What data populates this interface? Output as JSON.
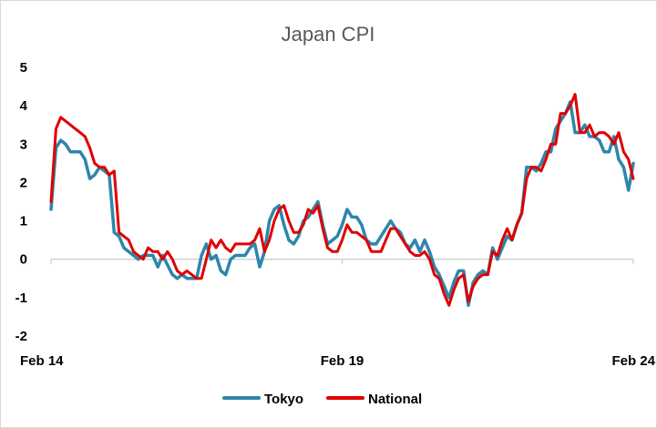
{
  "chart_data": {
    "type": "line",
    "title": "Japan CPI",
    "xlabel": "",
    "ylabel": "",
    "x_range": [
      2014.083,
      2024.083
    ],
    "ylim": [
      -2,
      5
    ],
    "y_ticks": [
      "-2",
      "-1",
      "0",
      "1",
      "2",
      "3",
      "4",
      "5"
    ],
    "x_ticks": [
      {
        "label": "Feb 14",
        "x": 2014.083
      },
      {
        "label": "Feb 19",
        "x": 2019.083
      },
      {
        "label": "Feb 24",
        "x": 2024.083
      }
    ],
    "grid": false,
    "legend": "bottom",
    "series": [
      {
        "name": "Tokyo",
        "color": "#2E86AB",
        "points": [
          [
            2014.083,
            1.3
          ],
          [
            2014.167,
            2.9
          ],
          [
            2014.25,
            3.1
          ],
          [
            2014.333,
            3.0
          ],
          [
            2014.417,
            2.8
          ],
          [
            2014.583,
            2.8
          ],
          [
            2014.667,
            2.6
          ],
          [
            2014.75,
            2.1
          ],
          [
            2014.833,
            2.2
          ],
          [
            2014.917,
            2.4
          ],
          [
            2015.0,
            2.3
          ],
          [
            2015.083,
            2.2
          ],
          [
            2015.167,
            0.7
          ],
          [
            2015.25,
            0.6
          ],
          [
            2015.333,
            0.3
          ],
          [
            2015.5,
            0.1
          ],
          [
            2015.583,
            0.0
          ],
          [
            2015.667,
            0.1
          ],
          [
            2015.833,
            0.1
          ],
          [
            2015.917,
            -0.2
          ],
          [
            2016.0,
            0.1
          ],
          [
            2016.167,
            -0.4
          ],
          [
            2016.25,
            -0.5
          ],
          [
            2016.333,
            -0.4
          ],
          [
            2016.417,
            -0.5
          ],
          [
            2016.5,
            -0.5
          ],
          [
            2016.583,
            -0.5
          ],
          [
            2016.667,
            0.1
          ],
          [
            2016.75,
            0.4
          ],
          [
            2016.833,
            0.0
          ],
          [
            2016.917,
            0.1
          ],
          [
            2017.0,
            -0.3
          ],
          [
            2017.083,
            -0.4
          ],
          [
            2017.167,
            0.0
          ],
          [
            2017.25,
            0.1
          ],
          [
            2017.417,
            0.1
          ],
          [
            2017.5,
            0.3
          ],
          [
            2017.583,
            0.4
          ],
          [
            2017.667,
            -0.2
          ],
          [
            2017.75,
            0.2
          ],
          [
            2017.833,
            1.0
          ],
          [
            2017.917,
            1.3
          ],
          [
            2018.0,
            1.4
          ],
          [
            2018.083,
            0.9
          ],
          [
            2018.167,
            0.5
          ],
          [
            2018.25,
            0.4
          ],
          [
            2018.333,
            0.6
          ],
          [
            2018.417,
            1.0
          ],
          [
            2018.5,
            1.1
          ],
          [
            2018.583,
            1.3
          ],
          [
            2018.667,
            1.5
          ],
          [
            2018.75,
            0.9
          ],
          [
            2018.833,
            0.4
          ],
          [
            2018.917,
            0.5
          ],
          [
            2019.0,
            0.6
          ],
          [
            2019.083,
            0.9
          ],
          [
            2019.167,
            1.3
          ],
          [
            2019.25,
            1.1
          ],
          [
            2019.333,
            1.1
          ],
          [
            2019.417,
            0.9
          ],
          [
            2019.5,
            0.5
          ],
          [
            2019.583,
            0.4
          ],
          [
            2019.667,
            0.4
          ],
          [
            2019.75,
            0.6
          ],
          [
            2019.833,
            0.8
          ],
          [
            2019.917,
            1.0
          ],
          [
            2020.0,
            0.8
          ],
          [
            2020.083,
            0.7
          ],
          [
            2020.167,
            0.4
          ],
          [
            2020.25,
            0.3
          ],
          [
            2020.333,
            0.5
          ],
          [
            2020.417,
            0.2
          ],
          [
            2020.5,
            0.5
          ],
          [
            2020.583,
            0.2
          ],
          [
            2020.667,
            -0.2
          ],
          [
            2020.75,
            -0.4
          ],
          [
            2020.833,
            -0.7
          ],
          [
            2020.917,
            -1.0
          ],
          [
            2021.0,
            -0.6
          ],
          [
            2021.083,
            -0.3
          ],
          [
            2021.167,
            -0.3
          ],
          [
            2021.25,
            -1.2
          ],
          [
            2021.333,
            -0.6
          ],
          [
            2021.417,
            -0.4
          ],
          [
            2021.5,
            -0.3
          ],
          [
            2021.583,
            -0.4
          ],
          [
            2021.667,
            0.3
          ],
          [
            2021.75,
            0.0
          ],
          [
            2021.833,
            0.3
          ],
          [
            2021.917,
            0.6
          ],
          [
            2022.0,
            0.5
          ],
          [
            2022.083,
            0.9
          ],
          [
            2022.167,
            1.2
          ],
          [
            2022.25,
            2.4
          ],
          [
            2022.333,
            2.4
          ],
          [
            2022.417,
            2.3
          ],
          [
            2022.5,
            2.5
          ],
          [
            2022.583,
            2.8
          ],
          [
            2022.667,
            2.8
          ],
          [
            2022.75,
            3.4
          ],
          [
            2022.833,
            3.6
          ],
          [
            2022.917,
            3.8
          ],
          [
            2023.0,
            4.1
          ],
          [
            2023.083,
            3.3
          ],
          [
            2023.167,
            3.3
          ],
          [
            2023.25,
            3.5
          ],
          [
            2023.333,
            3.2
          ],
          [
            2023.417,
            3.2
          ],
          [
            2023.5,
            3.1
          ],
          [
            2023.583,
            2.8
          ],
          [
            2023.667,
            2.8
          ],
          [
            2023.75,
            3.2
          ],
          [
            2023.833,
            2.6
          ],
          [
            2023.917,
            2.4
          ],
          [
            2024.0,
            1.8
          ],
          [
            2024.083,
            2.5
          ]
        ]
      },
      {
        "name": "National",
        "color": "#E00000",
        "points": [
          [
            2014.083,
            1.5
          ],
          [
            2014.167,
            3.4
          ],
          [
            2014.25,
            3.7
          ],
          [
            2014.333,
            3.6
          ],
          [
            2014.417,
            3.5
          ],
          [
            2014.5,
            3.4
          ],
          [
            2014.583,
            3.3
          ],
          [
            2014.667,
            3.2
          ],
          [
            2014.75,
            2.9
          ],
          [
            2014.833,
            2.5
          ],
          [
            2014.917,
            2.4
          ],
          [
            2015.0,
            2.4
          ],
          [
            2015.083,
            2.2
          ],
          [
            2015.167,
            2.3
          ],
          [
            2015.25,
            0.7
          ],
          [
            2015.333,
            0.6
          ],
          [
            2015.417,
            0.5
          ],
          [
            2015.5,
            0.2
          ],
          [
            2015.583,
            0.1
          ],
          [
            2015.667,
            0.0
          ],
          [
            2015.75,
            0.3
          ],
          [
            2015.833,
            0.2
          ],
          [
            2015.917,
            0.2
          ],
          [
            2016.0,
            0.0
          ],
          [
            2016.083,
            0.2
          ],
          [
            2016.167,
            0.0
          ],
          [
            2016.25,
            -0.3
          ],
          [
            2016.333,
            -0.4
          ],
          [
            2016.417,
            -0.3
          ],
          [
            2016.5,
            -0.4
          ],
          [
            2016.583,
            -0.5
          ],
          [
            2016.667,
            -0.5
          ],
          [
            2016.75,
            0.0
          ],
          [
            2016.833,
            0.5
          ],
          [
            2016.917,
            0.3
          ],
          [
            2017.0,
            0.5
          ],
          [
            2017.083,
            0.3
          ],
          [
            2017.167,
            0.2
          ],
          [
            2017.25,
            0.4
          ],
          [
            2017.417,
            0.4
          ],
          [
            2017.5,
            0.4
          ],
          [
            2017.583,
            0.5
          ],
          [
            2017.667,
            0.8
          ],
          [
            2017.75,
            0.2
          ],
          [
            2017.833,
            0.5
          ],
          [
            2017.917,
            1.0
          ],
          [
            2018.0,
            1.3
          ],
          [
            2018.083,
            1.4
          ],
          [
            2018.167,
            1.0
          ],
          [
            2018.25,
            0.7
          ],
          [
            2018.333,
            0.7
          ],
          [
            2018.417,
            0.9
          ],
          [
            2018.5,
            1.3
          ],
          [
            2018.583,
            1.2
          ],
          [
            2018.667,
            1.4
          ],
          [
            2018.75,
            0.8
          ],
          [
            2018.833,
            0.3
          ],
          [
            2018.917,
            0.2
          ],
          [
            2019.0,
            0.2
          ],
          [
            2019.083,
            0.5
          ],
          [
            2019.167,
            0.9
          ],
          [
            2019.25,
            0.7
          ],
          [
            2019.333,
            0.7
          ],
          [
            2019.417,
            0.6
          ],
          [
            2019.5,
            0.5
          ],
          [
            2019.583,
            0.2
          ],
          [
            2019.667,
            0.2
          ],
          [
            2019.75,
            0.2
          ],
          [
            2019.833,
            0.5
          ],
          [
            2019.917,
            0.8
          ],
          [
            2020.0,
            0.8
          ],
          [
            2020.083,
            0.6
          ],
          [
            2020.167,
            0.4
          ],
          [
            2020.25,
            0.2
          ],
          [
            2020.333,
            0.1
          ],
          [
            2020.417,
            0.1
          ],
          [
            2020.5,
            0.2
          ],
          [
            2020.583,
            0.0
          ],
          [
            2020.667,
            -0.4
          ],
          [
            2020.75,
            -0.5
          ],
          [
            2020.833,
            -0.9
          ],
          [
            2020.917,
            -1.2
          ],
          [
            2021.0,
            -0.8
          ],
          [
            2021.083,
            -0.5
          ],
          [
            2021.167,
            -0.4
          ],
          [
            2021.25,
            -1.1
          ],
          [
            2021.333,
            -0.7
          ],
          [
            2021.417,
            -0.5
          ],
          [
            2021.5,
            -0.4
          ],
          [
            2021.583,
            -0.4
          ],
          [
            2021.667,
            0.2
          ],
          [
            2021.75,
            0.1
          ],
          [
            2021.833,
            0.5
          ],
          [
            2021.917,
            0.8
          ],
          [
            2022.0,
            0.5
          ],
          [
            2022.083,
            0.9
          ],
          [
            2022.167,
            1.2
          ],
          [
            2022.25,
            2.1
          ],
          [
            2022.333,
            2.4
          ],
          [
            2022.417,
            2.4
          ],
          [
            2022.5,
            2.3
          ],
          [
            2022.583,
            2.6
          ],
          [
            2022.667,
            3.0
          ],
          [
            2022.75,
            3.0
          ],
          [
            2022.833,
            3.8
          ],
          [
            2022.917,
            3.8
          ],
          [
            2023.0,
            4.0
          ],
          [
            2023.083,
            4.3
          ],
          [
            2023.167,
            3.3
          ],
          [
            2023.25,
            3.3
          ],
          [
            2023.333,
            3.5
          ],
          [
            2023.417,
            3.2
          ],
          [
            2023.5,
            3.3
          ],
          [
            2023.583,
            3.3
          ],
          [
            2023.667,
            3.2
          ],
          [
            2023.75,
            3.0
          ],
          [
            2023.833,
            3.3
          ],
          [
            2023.917,
            2.8
          ],
          [
            2024.0,
            2.6
          ],
          [
            2024.083,
            2.1
          ]
        ]
      }
    ]
  }
}
